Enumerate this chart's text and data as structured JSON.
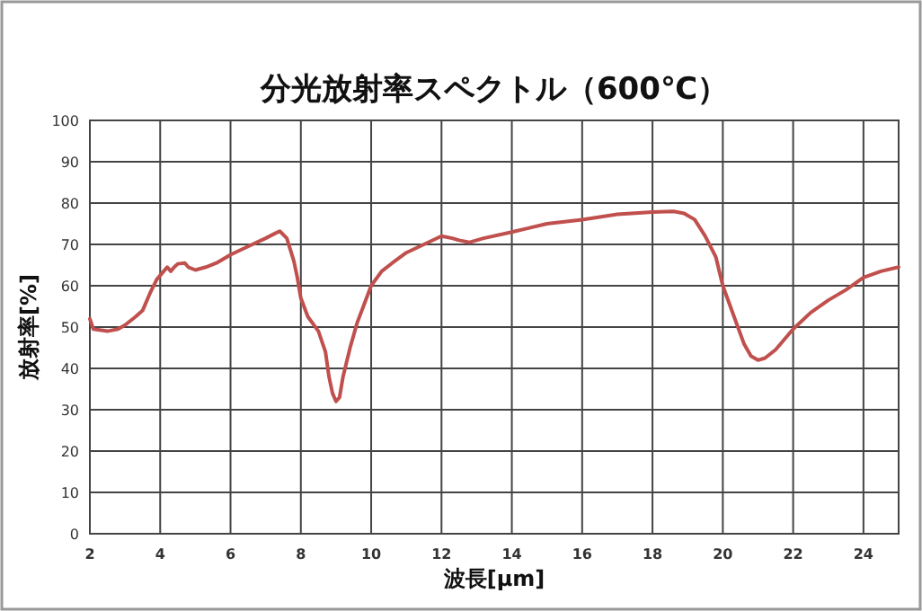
{
  "chart_data": {
    "type": "line",
    "title": "分光放射率スペクトル（600℃）",
    "xlabel": "波長[μm]",
    "ylabel": "放射率[%]",
    "xlim": [
      2,
      25
    ],
    "ylim": [
      0,
      100
    ],
    "xticks": [
      2,
      4,
      6,
      8,
      10,
      12,
      14,
      16,
      18,
      20,
      22,
      24
    ],
    "yticks": [
      0,
      10,
      20,
      30,
      40,
      50,
      60,
      70,
      80,
      90,
      100
    ],
    "grid": true,
    "marker": "none",
    "line_style": "solid",
    "series": [
      {
        "color": "#c0504d",
        "x": [
          2.0,
          2.1,
          2.5,
          2.8,
          3.0,
          3.3,
          3.5,
          3.7,
          3.9,
          4.1,
          4.2,
          4.3,
          4.4,
          4.5,
          4.7,
          4.8,
          5.0,
          5.3,
          5.6,
          6.0,
          6.5,
          7.0,
          7.3,
          7.4,
          7.6,
          7.8,
          7.9,
          8.0,
          8.2,
          8.5,
          8.7,
          8.8,
          8.9,
          9.0,
          9.1,
          9.2,
          9.4,
          9.6,
          9.8,
          10.0,
          10.3,
          10.6,
          11.0,
          11.5,
          12.0,
          12.3,
          12.5,
          12.8,
          13.2,
          14.0,
          14.5,
          15.0,
          16.0,
          17.0,
          18.0,
          18.6,
          18.9,
          19.2,
          19.5,
          19.8,
          20.0,
          20.3,
          20.6,
          20.8,
          21.0,
          21.2,
          21.5,
          22.0,
          22.5,
          23.0,
          23.5,
          24.0,
          24.5,
          25.0
        ],
        "values": [
          52,
          49.5,
          49,
          49.5,
          50.5,
          52.5,
          54,
          58,
          61.5,
          63.5,
          64.5,
          63.5,
          64.5,
          65.3,
          65.5,
          64.5,
          63.8,
          64.5,
          65.5,
          67.5,
          69.5,
          71.5,
          72.8,
          73.2,
          71.5,
          66,
          62,
          57,
          52.5,
          49,
          44,
          38,
          34,
          32,
          33,
          38,
          45,
          51,
          55.5,
          60,
          63.5,
          65.5,
          68,
          70,
          72,
          71.5,
          71,
          70.5,
          71.5,
          73,
          74,
          75,
          76,
          77.3,
          77.8,
          78,
          77.5,
          76,
          72,
          67,
          60,
          53,
          46,
          43,
          42,
          42.5,
          44.5,
          49.5,
          53.5,
          56.5,
          59,
          62,
          63.5,
          64.5
        ]
      }
    ]
  }
}
